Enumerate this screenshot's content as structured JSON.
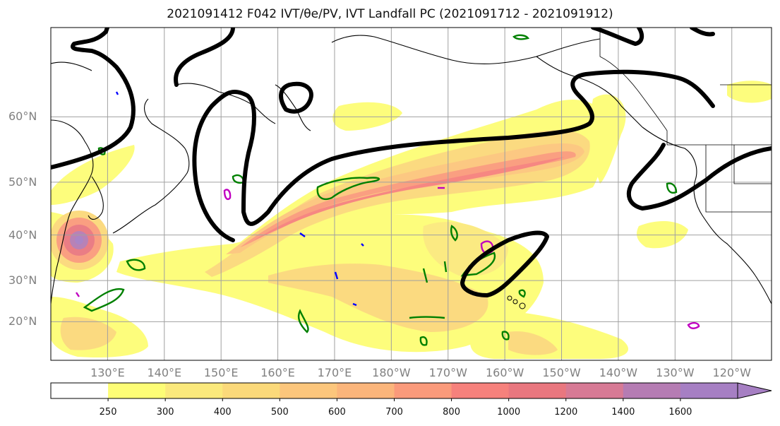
{
  "title": "2021091412 F042 IVT/θe/PV, IVT Landfall PC (2021091712 - 2021091912)",
  "map": {
    "lat_labels": [
      {
        "lat": 60,
        "label": "60°N"
      },
      {
        "lat": 50,
        "label": "50°N"
      },
      {
        "lat": 40,
        "label": "40°N"
      },
      {
        "lat": 30,
        "label": "30°N"
      },
      {
        "lat": 20,
        "label": "20°N"
      }
    ],
    "lon_labels": [
      {
        "lon": 130,
        "label": "130°E"
      },
      {
        "lon": 140,
        "label": "140°E"
      },
      {
        "lon": 150,
        "label": "150°E"
      },
      {
        "lon": 160,
        "label": "160°E"
      },
      {
        "lon": 170,
        "label": "170°E"
      },
      {
        "lon": 180,
        "label": "180°W"
      },
      {
        "lon": 190,
        "label": "170°W"
      },
      {
        "lon": 200,
        "label": "160°W"
      },
      {
        "lon": 210,
        "label": "150°W"
      },
      {
        "lon": 220,
        "label": "140°W"
      },
      {
        "lon": 230,
        "label": "130°W"
      },
      {
        "lon": 240,
        "label": "120°W"
      }
    ],
    "extent": {
      "lon_min": 120,
      "lon_max": 247,
      "lat_min": 10,
      "lat_max": 70
    }
  },
  "colorbar": {
    "levels": [
      250,
      300,
      400,
      500,
      600,
      700,
      800,
      1000,
      1200,
      1400,
      1600
    ],
    "level_labels": [
      "250",
      "300",
      "400",
      "500",
      "600",
      "700",
      "800",
      "1000",
      "1200",
      "1400",
      "1600"
    ],
    "colors": [
      "#ffffff",
      "#fdfd76",
      "#fbe97c",
      "#fbd97a",
      "#fcc67c",
      "#fbb57b",
      "#fa9a7b",
      "#f6817c",
      "#e9777f",
      "#d77a95",
      "#b57cb3",
      "#a67fc3"
    ]
  },
  "colors": {
    "ivt_contour": "#000000",
    "theta_e": "#008000",
    "pv_positive": "#c000c0",
    "pv_negative": "#0000ff"
  }
}
